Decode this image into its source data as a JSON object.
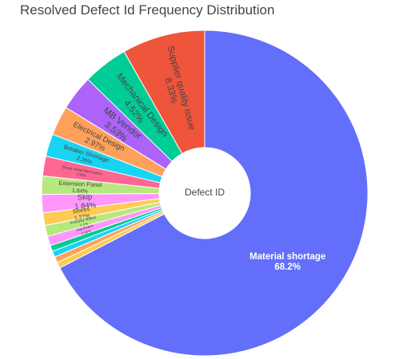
{
  "chart_data": {
    "type": "pie",
    "hole": true,
    "title": "Resolved Defect Id Frequency Distribution",
    "center_label": "Defect ID",
    "start": "12 o'clock",
    "direction": "clockwise",
    "slices": [
      {
        "label": "Material shortage",
        "percent_label": "68.2%",
        "value": 68.2,
        "color": "#636efa",
        "text_color": "#ffffff",
        "label_orientation": "horizontal",
        "label_size": "large"
      },
      {
        "label": "",
        "percent_label": "",
        "value": 0.6,
        "color": "#fecb52",
        "text_color": "#444444",
        "label_orientation": "none",
        "label_size": "none"
      },
      {
        "label": "",
        "percent_label": "",
        "value": 0.6,
        "color": "#ffa15a",
        "text_color": "#444444",
        "label_orientation": "none",
        "label_size": "none"
      },
      {
        "label": "",
        "percent_label": "",
        "value": 0.6,
        "color": "#19d3f3",
        "text_color": "#444444",
        "label_orientation": "none",
        "label_size": "none"
      },
      {
        "label": "",
        "percent_label": "",
        "value": 0.6,
        "color": "#00cc96",
        "text_color": "#444444",
        "label_orientation": "none",
        "label_size": "none"
      },
      {
        "label": "Hardware",
        "percent_label": "0.96%",
        "value": 0.96,
        "color": "#ff97ff",
        "text_color": "#444444",
        "label_orientation": "radial",
        "label_size": "tiny"
      },
      {
        "label": "Process Noted",
        "percent_label": "1.1%",
        "value": 1.1,
        "color": "#b6e880",
        "text_color": "#444444",
        "label_orientation": "radial",
        "label_size": "tiny"
      },
      {
        "label": "Stores",
        "percent_label": "1.27%",
        "value": 1.27,
        "color": "#fecb52",
        "text_color": "#444444",
        "label_orientation": "radial",
        "label_size": "small"
      },
      {
        "label": "Skip",
        "percent_label": "1.84%",
        "value": 1.84,
        "color": "#ff97ff",
        "text_color": "#444444",
        "label_orientation": "radial",
        "label_size": "medium"
      },
      {
        "label": "Extension Panel",
        "percent_label": "1.84%",
        "value": 1.84,
        "color": "#b6e880",
        "text_color": "#444444",
        "label_orientation": "radial",
        "label_size": "small"
      },
      {
        "label": "Sheet metal fabrication",
        "percent_label": "1.98%",
        "value": 1.98,
        "color": "#ff6692",
        "text_color": "#444444",
        "label_orientation": "radial",
        "label_size": "tiny"
      },
      {
        "label": "Breaker Shortage",
        "percent_label": "2.26%",
        "value": 2.26,
        "color": "#19d3f3",
        "text_color": "#444444",
        "label_orientation": "radial",
        "label_size": "small"
      },
      {
        "label": "Electrical Design",
        "percent_label": "2.97%",
        "value": 2.97,
        "color": "#ffa15a",
        "text_color": "#444444",
        "label_orientation": "radial",
        "label_size": "medium"
      },
      {
        "label": "MB Vendor",
        "percent_label": "3.53%",
        "value": 3.53,
        "color": "#ab63fa",
        "text_color": "#444444",
        "label_orientation": "radial",
        "label_size": "large"
      },
      {
        "label": "Mechanical Design",
        "percent_label": "4.52%",
        "value": 4.52,
        "color": "#00cc96",
        "text_color": "#444444",
        "label_orientation": "radial",
        "label_size": "large"
      },
      {
        "label": "Supplier quality issue",
        "percent_label": "8.33%",
        "value": 8.33,
        "color": "#ef553b",
        "text_color": "#444444",
        "label_orientation": "radial",
        "label_size": "large"
      }
    ]
  }
}
